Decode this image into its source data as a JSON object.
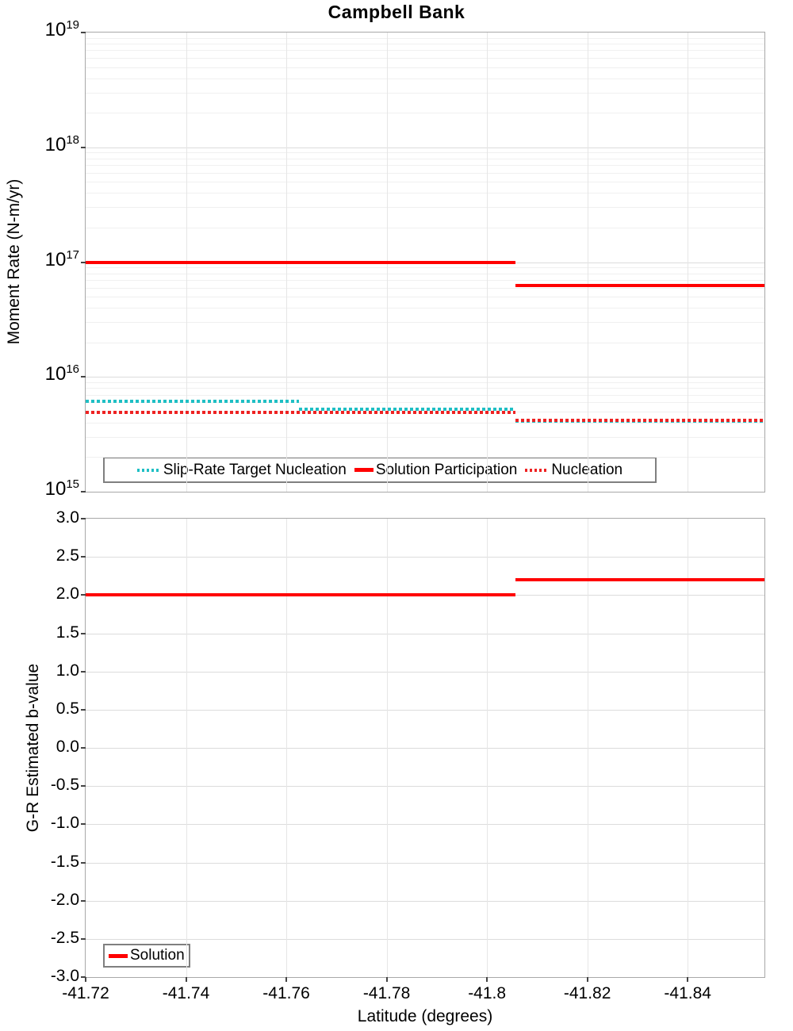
{
  "chart_data": [
    {
      "id": "moment-rate",
      "type": "line",
      "title": "Campbell Bank",
      "ylabel": "Moment Rate (N-m/yr)",
      "yscale": "log",
      "ylim": [
        1000000000000000.0,
        1e+19
      ],
      "ytick_exponents": [
        19,
        18,
        17,
        16,
        15
      ],
      "xlim": [
        -41.72,
        -41.8553
      ],
      "xticks": [
        -41.72,
        -41.74,
        -41.76,
        -41.78,
        -41.8,
        -41.82,
        -41.84
      ],
      "xtick_labels": null,
      "grid": true,
      "legend_position": "bottom-inside",
      "series": [
        {
          "name": "Slip-Rate Target Nucleation",
          "style": "dotted",
          "color": "#1fbfc4",
          "segments": [
            {
              "x": [
                -41.72,
                -41.7625
              ],
              "y": 6100000000000000.0
            },
            {
              "x": [
                -41.7625,
                -41.8056
              ],
              "y": 5200000000000000.0
            },
            {
              "x": [
                -41.8056,
                -41.8553
              ],
              "y": 4100000000000000.0
            }
          ]
        },
        {
          "name": "Solution Participation",
          "style": "solid",
          "color": "#ff0000",
          "segments": [
            {
              "x": [
                -41.72,
                -41.8056
              ],
              "y": 1e+17
            },
            {
              "x": [
                -41.8056,
                -41.8553
              ],
              "y": 6.3e+16
            }
          ]
        },
        {
          "name": "Nucleation",
          "style": "dotted",
          "color": "#ee2222",
          "segments": [
            {
              "x": [
                -41.72,
                -41.8056
              ],
              "y": 4900000000000000.0
            },
            {
              "x": [
                -41.8056,
                -41.8553
              ],
              "y": 4200000000000000.0
            }
          ]
        }
      ]
    },
    {
      "id": "b-value",
      "type": "line",
      "ylabel": "G-R Estimated b-value",
      "xlabel": "Latitude (degrees)",
      "yscale": "linear",
      "ylim": [
        -3.0,
        3.0
      ],
      "yticks": [
        3.0,
        2.5,
        2.0,
        1.5,
        1.0,
        0.5,
        0.0,
        -0.5,
        -1.0,
        -1.5,
        -2.0,
        -2.5,
        -3.0
      ],
      "ytick_labels": [
        "3.0",
        "2.5",
        "2.0",
        "1.5",
        "1.0",
        "0.5",
        "0.0",
        "-0.5",
        "-1.0",
        "-1.5",
        "-2.0",
        "-2.5",
        "-3.0"
      ],
      "xlim": [
        -41.72,
        -41.8553
      ],
      "xticks": [
        -41.72,
        -41.74,
        -41.76,
        -41.78,
        -41.8,
        -41.82,
        -41.84
      ],
      "xtick_labels": [
        "-41.72",
        "-41.74",
        "-41.76",
        "-41.78",
        "-41.8",
        "-41.82",
        "-41.84"
      ],
      "grid": true,
      "legend_position": "bottom-left-inside",
      "series": [
        {
          "name": "Solution",
          "style": "solid",
          "color": "#ff0000",
          "segments": [
            {
              "x": [
                -41.72,
                -41.8056
              ],
              "y": 2.0
            },
            {
              "x": [
                -41.8056,
                -41.8553
              ],
              "y": 2.2
            }
          ]
        }
      ]
    }
  ],
  "colors": {
    "axis_border": "#a8a8a8",
    "grid_major": "#dcdcdc",
    "grid_minor": "#f0f0f0",
    "legend_border": "#7f7f7f",
    "background": "#ffffff"
  }
}
